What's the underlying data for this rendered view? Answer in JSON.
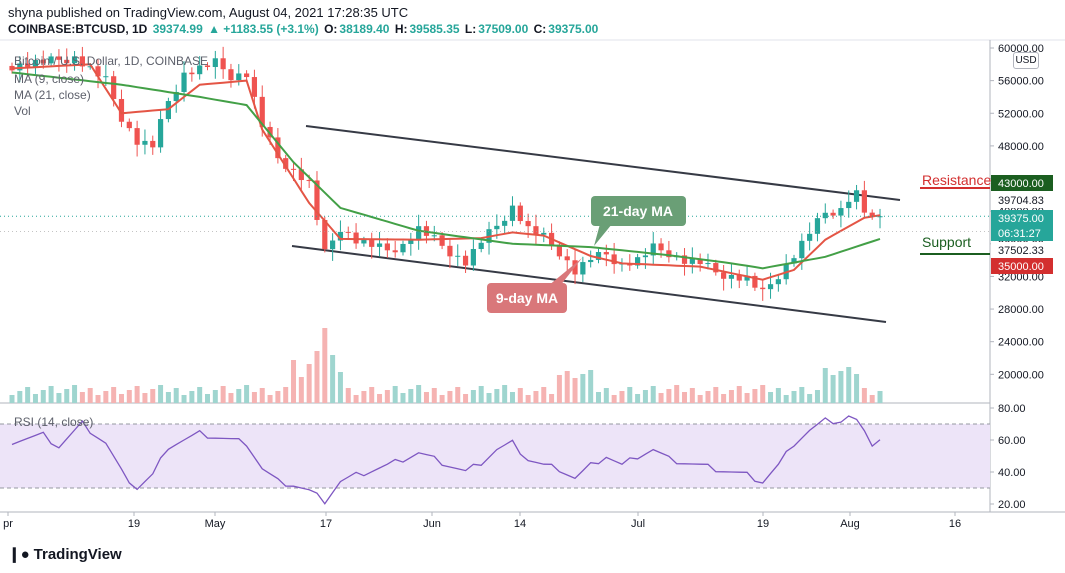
{
  "header": {
    "published_line": "shyna published on TradingView.com, August 04, 2021 17:28:35 UTC",
    "symbol": "COINBASE:BTCUSD, 1D",
    "last": "39374.99",
    "change": "▲ +1183.55 (+3.1%)",
    "o_label": "O:",
    "o_value": "38189.40",
    "h_label": "H:",
    "h_value": "39585.35",
    "l_label": "L:",
    "l_value": "37509.00",
    "c_label": "C:",
    "c_value": "39375.00"
  },
  "legend": {
    "title": "Bitcoin / U.S. Dollar, 1D, COINBASE",
    "ma9": "MA (9, close)",
    "ma21": "MA (21, close)",
    "vol": "Vol",
    "rsi": "RSI (14, close)"
  },
  "currency_button": "USD",
  "branding": {
    "icon": "tradingview-logo-icon",
    "name": "TradingView"
  },
  "colors": {
    "up": "#26a69a",
    "down": "#ef5350",
    "ma9": "#e45545",
    "ma21": "#43a047",
    "rsi": "#7e57c2",
    "rsi_band": "#ede4f8",
    "channel": "#363a45",
    "background": "#ffffff"
  },
  "chart_data": [
    {
      "type": "candlestick",
      "title": "Bitcoin / U.S. Dollar, 1D, COINBASE",
      "ylim": [
        15000,
        61000
      ],
      "y_ticks": [
        "60000.00",
        "56000.00",
        "52000.00",
        "48000.00",
        "44000.00",
        "40000.00",
        "36000.00",
        "32000.00",
        "28000.00",
        "24000.00",
        "20000.00"
      ],
      "x_ticks": [
        "pr",
        "19",
        "May",
        "17",
        "Jun",
        "14",
        "Jul",
        "19",
        "Aug",
        "16"
      ],
      "price_labels": [
        {
          "text": "43000.00",
          "value": 43000,
          "color": "#1b5e20"
        },
        {
          "text": "39704.83",
          "value": 39704.83,
          "color": "#ffffff",
          "text_color": "#131722"
        },
        {
          "text": "39375.00",
          "value": 39375,
          "color": "#26a69a"
        },
        {
          "text": "06:31:27",
          "value": 38400,
          "color": "#26a69a"
        },
        {
          "text": "37502.33",
          "value": 37502.33,
          "color": "#ffffff",
          "text_color": "#131722"
        },
        {
          "text": "35000.00",
          "value": 35000,
          "color": "#d32f2f"
        }
      ],
      "annotations": [
        {
          "text": "Resistance",
          "color": "#d32f2f"
        },
        {
          "text": "Support",
          "color": "#1b5e20"
        },
        {
          "text": "21-day MA",
          "color": "#6a9f76"
        },
        {
          "text": "9-day MA",
          "color": "#d9777a"
        }
      ],
      "channel_lines": [
        {
          "from": [
            "Apr 29",
            51000
          ],
          "to": [
            "Aug 09",
            41000
          ]
        },
        {
          "from": [
            "Apr 29",
            36400
          ],
          "to": [
            "Aug 09",
            26800
          ]
        }
      ],
      "series": [
        {
          "name": "MA (9, close)",
          "close_anchors": [
            [
              0,
              57500
            ],
            [
              10,
              58000
            ],
            [
              14,
              52000
            ],
            [
              20,
              52500
            ],
            [
              24,
              55500
            ],
            [
              30,
              56000
            ],
            [
              32,
              50000
            ],
            [
              38,
              41000
            ],
            [
              42,
              36600
            ],
            [
              52,
              36500
            ],
            [
              60,
              36700
            ],
            [
              64,
              37400
            ],
            [
              68,
              37000
            ],
            [
              74,
              34500
            ],
            [
              78,
              33600
            ],
            [
              88,
              33200
            ],
            [
              92,
              32400
            ],
            [
              96,
              31600
            ],
            [
              100,
              32800
            ],
            [
              104,
              36500
            ],
            [
              109,
              39200
            ],
            [
              111,
              39500
            ]
          ]
        },
        {
          "name": "MA (21, close)",
          "close_anchors": [
            [
              0,
              57000
            ],
            [
              14,
              55500
            ],
            [
              24,
              54000
            ],
            [
              30,
              53000
            ],
            [
              36,
              46000
            ],
            [
              42,
              40400
            ],
            [
              52,
              37600
            ],
            [
              64,
              36000
            ],
            [
              74,
              35600
            ],
            [
              84,
              34600
            ],
            [
              92,
              33600
            ],
            [
              96,
              33000
            ],
            [
              104,
              34400
            ],
            [
              111,
              36600
            ]
          ]
        }
      ],
      "candle_close_anchors": [
        [
          0,
          57800
        ],
        [
          8,
          58800
        ],
        [
          12,
          56000
        ],
        [
          14,
          51500
        ],
        [
          16,
          48500
        ],
        [
          18,
          48000
        ],
        [
          20,
          53500
        ],
        [
          22,
          56800
        ],
        [
          26,
          58200
        ],
        [
          28,
          56600
        ],
        [
          30,
          56800
        ],
        [
          32,
          50500
        ],
        [
          34,
          46500
        ],
        [
          38,
          43400
        ],
        [
          40,
          34800
        ],
        [
          42,
          38000
        ],
        [
          44,
          36400
        ],
        [
          48,
          35200
        ],
        [
          50,
          35800
        ],
        [
          52,
          37800
        ],
        [
          54,
          36500
        ],
        [
          56,
          35000
        ],
        [
          58,
          33700
        ],
        [
          60,
          36300
        ],
        [
          62,
          38200
        ],
        [
          64,
          40500
        ],
        [
          66,
          37800
        ],
        [
          68,
          36800
        ],
        [
          70,
          35000
        ],
        [
          72,
          32600
        ],
        [
          74,
          34200
        ],
        [
          76,
          34700
        ],
        [
          78,
          33400
        ],
        [
          80,
          34000
        ],
        [
          82,
          35500
        ],
        [
          84,
          34900
        ],
        [
          86,
          33900
        ],
        [
          88,
          33700
        ],
        [
          90,
          32500
        ],
        [
          92,
          32000
        ],
        [
          94,
          31700
        ],
        [
          96,
          29900
        ],
        [
          98,
          32200
        ],
        [
          100,
          34600
        ],
        [
          102,
          37400
        ],
        [
          104,
          39800
        ],
        [
          106,
          40200
        ],
        [
          107,
          41500
        ],
        [
          108,
          42200
        ],
        [
          109,
          40000
        ],
        [
          110,
          38800
        ],
        [
          111,
          39375
        ]
      ]
    },
    {
      "type": "bar",
      "name": "Vol",
      "note": "volume histogram, relative heights"
    },
    {
      "type": "line",
      "name": "RSI (14, close)",
      "ylim": [
        20,
        80
      ],
      "y_ticks": [
        "80.00",
        "60.00",
        "40.00",
        "20.00"
      ],
      "band": [
        30,
        70
      ],
      "anchors": [
        [
          0,
          59
        ],
        [
          4,
          63
        ],
        [
          6,
          56
        ],
        [
          9,
          70
        ],
        [
          12,
          58
        ],
        [
          14,
          40
        ],
        [
          16,
          30
        ],
        [
          18,
          38
        ],
        [
          20,
          56
        ],
        [
          22,
          60
        ],
        [
          24,
          64
        ],
        [
          26,
          62
        ],
        [
          28,
          60
        ],
        [
          30,
          58
        ],
        [
          32,
          42
        ],
        [
          34,
          34
        ],
        [
          36,
          32
        ],
        [
          38,
          28
        ],
        [
          40,
          22
        ],
        [
          42,
          34
        ],
        [
          44,
          38
        ],
        [
          48,
          44
        ],
        [
          50,
          48
        ],
        [
          52,
          52
        ],
        [
          54,
          48
        ],
        [
          56,
          44
        ],
        [
          58,
          40
        ],
        [
          60,
          46
        ],
        [
          62,
          54
        ],
        [
          64,
          58
        ],
        [
          66,
          48
        ],
        [
          68,
          44
        ],
        [
          70,
          42
        ],
        [
          72,
          36
        ],
        [
          74,
          44
        ],
        [
          76,
          50
        ],
        [
          78,
          44
        ],
        [
          80,
          50
        ],
        [
          82,
          54
        ],
        [
          84,
          48
        ],
        [
          86,
          46
        ],
        [
          88,
          44
        ],
        [
          90,
          42
        ],
        [
          92,
          40
        ],
        [
          94,
          38
        ],
        [
          96,
          34
        ],
        [
          98,
          44
        ],
        [
          100,
          58
        ],
        [
          102,
          66
        ],
        [
          104,
          72
        ],
        [
          106,
          72
        ],
        [
          107,
          75
        ],
        [
          108,
          72
        ],
        [
          109,
          64
        ],
        [
          110,
          58
        ],
        [
          111,
          61
        ]
      ]
    }
  ]
}
